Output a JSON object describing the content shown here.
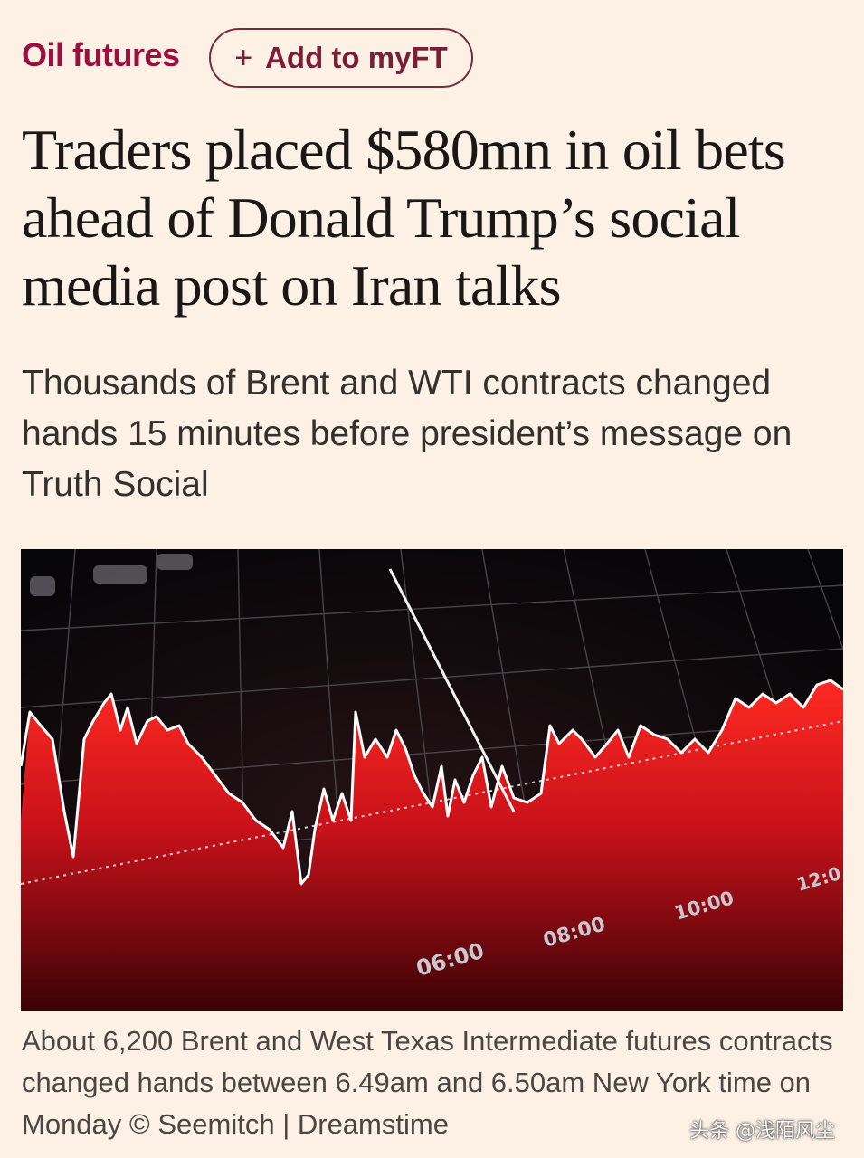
{
  "header": {
    "topic": "Oil futures",
    "myft_button": {
      "icon": "plus-icon",
      "label": "Add to myFT"
    }
  },
  "article": {
    "headline": "Traders placed $580mn in oil bets ahead of Donald Trump’s social media post on Iran talks",
    "standfirst": "Thousands of Brent and WTI contracts changed hands 15 minutes before president’s message on Truth Social"
  },
  "image": {
    "description_icon": "stock-chart-photo",
    "axis_labels": [
      "06:00",
      "08:00",
      "10:00",
      "12:0"
    ]
  },
  "caption": "About 6,200 Brent and West Texas Intermediate futures contracts changed hands between 6.49am and 6.50am New York time on Monday © Seemitch | Dreamstime",
  "watermark": "头条 @浅陌风尘",
  "colors": {
    "background": "#fdf1e6",
    "topic": "#990f3d",
    "headline": "#1a1817",
    "chart_red": "#d8101c"
  }
}
